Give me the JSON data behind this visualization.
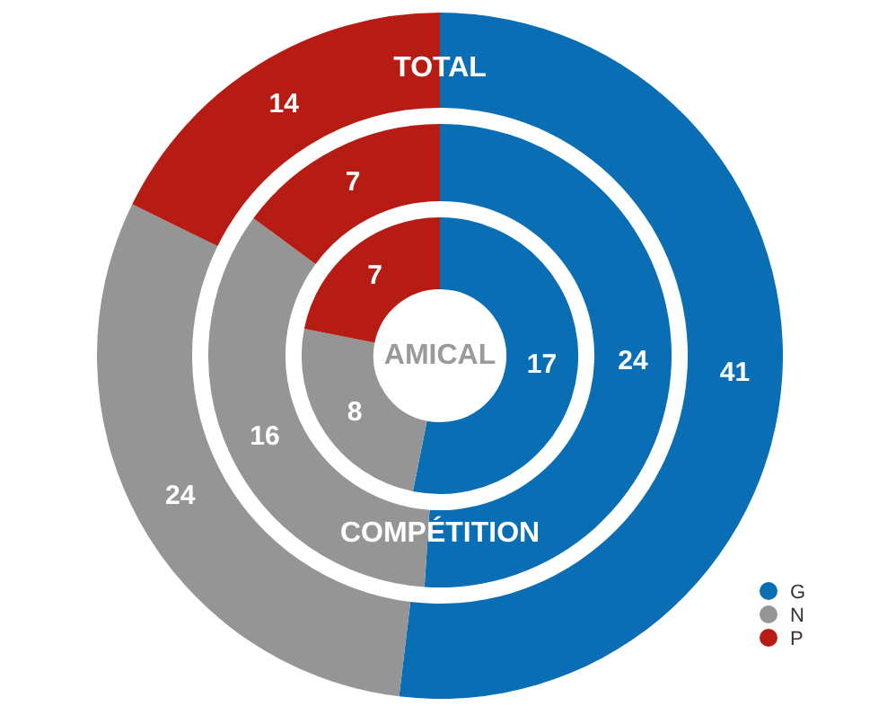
{
  "chart_data": {
    "type": "donut",
    "categories": [
      "G",
      "N",
      "P"
    ],
    "colors": [
      "#0a6eb4",
      "#959595",
      "#b71c14"
    ],
    "series": [
      {
        "name": "TOTAL",
        "values": [
          41,
          24,
          14
        ]
      },
      {
        "name": "COMPÉTITION",
        "values": [
          24,
          16,
          7
        ]
      },
      {
        "name": "AMICAL",
        "values": [
          17,
          8,
          7
        ]
      }
    ],
    "data_labels": true,
    "legend": "bottom right"
  }
}
